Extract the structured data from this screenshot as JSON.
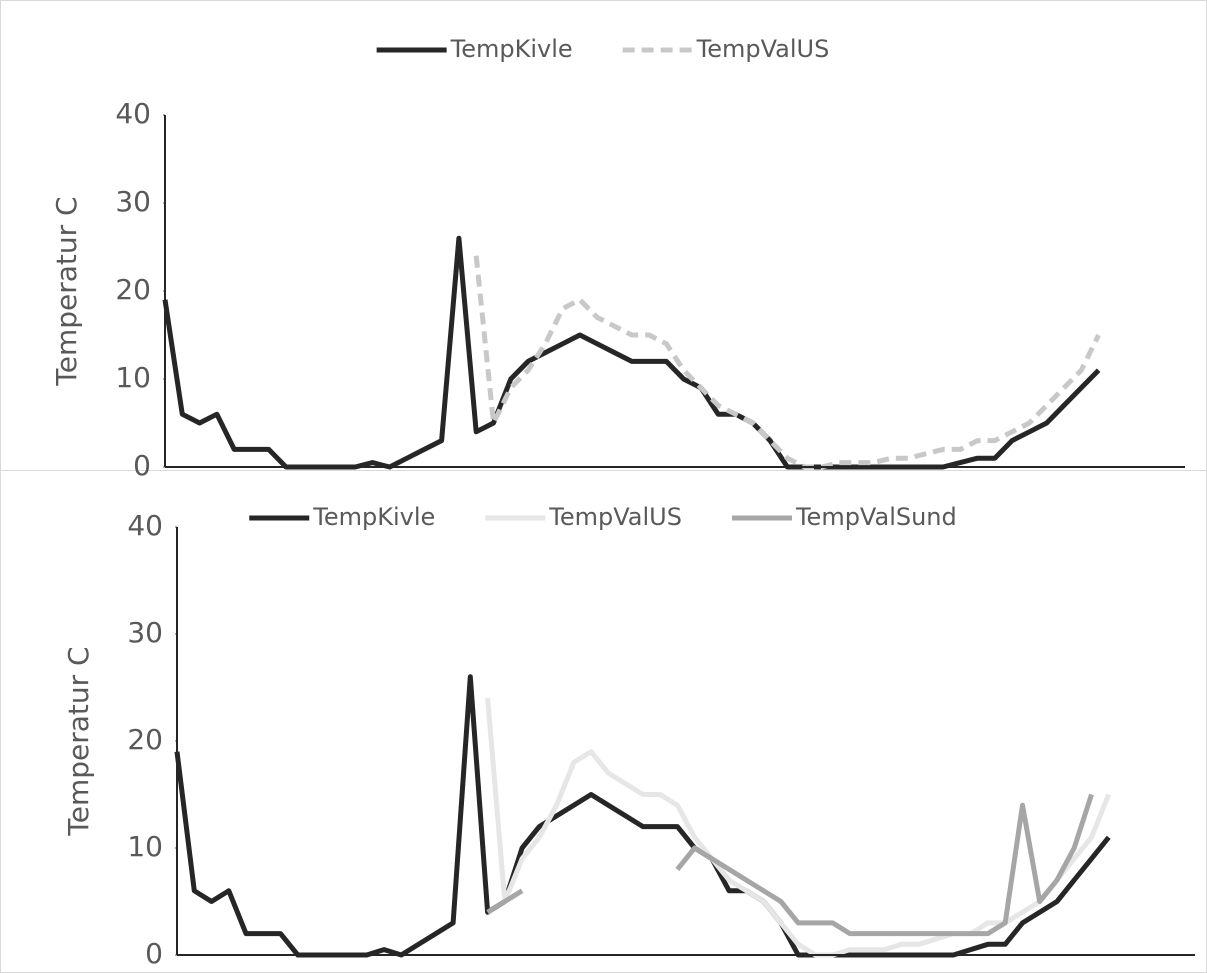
{
  "chart_data": [
    {
      "type": "line",
      "ylabel": "Temperatur C",
      "ylim": [
        0,
        40
      ],
      "yticks": [
        0,
        10,
        20,
        30,
        40
      ],
      "grid": false,
      "legend": "top",
      "categories": [
        null,
        null,
        null,
        null,
        null,
        null,
        null,
        null,
        null,
        null,
        null,
        null,
        null,
        null,
        null,
        null,
        null,
        null,
        null,
        null,
        null,
        null,
        null,
        null,
        null,
        null,
        null,
        null,
        null,
        null,
        null,
        null,
        null,
        null,
        null,
        null,
        null,
        null,
        null,
        null,
        null,
        null,
        null,
        null,
        null,
        null,
        null,
        null,
        null,
        null,
        null,
        null,
        null,
        null,
        null,
        null,
        null,
        null,
        null,
        null
      ],
      "series": [
        {
          "name": "TempKivle",
          "color": "#262626",
          "dash": false,
          "values": [
            19,
            6,
            5,
            6,
            2,
            2,
            2,
            0,
            0,
            0,
            0,
            0,
            0.5,
            0,
            1,
            2,
            3,
            26,
            4,
            5,
            10,
            12,
            13,
            14,
            15,
            14,
            13,
            12,
            12,
            12,
            10,
            9,
            6,
            6,
            5,
            3,
            0,
            0,
            0,
            0,
            0,
            0,
            0,
            0,
            0,
            0,
            0.5,
            1,
            1,
            3,
            4,
            5,
            7,
            9,
            11,
            null,
            null,
            null,
            null,
            null
          ]
        },
        {
          "name": "TempValUS",
          "color": "#c8c8c8",
          "dash": true,
          "values": [
            null,
            null,
            null,
            null,
            null,
            null,
            null,
            null,
            null,
            null,
            null,
            null,
            null,
            null,
            null,
            null,
            null,
            null,
            24,
            5,
            9,
            11,
            14,
            18,
            19,
            17,
            16,
            15,
            15,
            14,
            11,
            9,
            7,
            6,
            5,
            3,
            1,
            0,
            0,
            0.5,
            0.5,
            0.5,
            1,
            1,
            1.5,
            2,
            2,
            3,
            3,
            4,
            5,
            7,
            9,
            11,
            15,
            null,
            null,
            null,
            null,
            null
          ]
        }
      ]
    },
    {
      "type": "line",
      "ylabel": "Temperatur C",
      "ylim": [
        0,
        40
      ],
      "yticks": [
        0,
        10,
        20,
        30,
        40
      ],
      "grid": false,
      "legend": "top",
      "categories": [
        null,
        null,
        null,
        null,
        null,
        null,
        null,
        null,
        null,
        null,
        null,
        null,
        null,
        null,
        null,
        null,
        null,
        null,
        null,
        null,
        null,
        null,
        null,
        null,
        null,
        null,
        null,
        null,
        null,
        null,
        null,
        null,
        null,
        null,
        null,
        null,
        null,
        null,
        null,
        null,
        null,
        null,
        null,
        null,
        null,
        null,
        null,
        null,
        null,
        null,
        null,
        null,
        null,
        null,
        null,
        null,
        null,
        null,
        null,
        null
      ],
      "series": [
        {
          "name": "TempKivle",
          "color": "#262626",
          "dash": false,
          "values": [
            19,
            6,
            5,
            6,
            2,
            2,
            2,
            0,
            0,
            0,
            0,
            0,
            0.5,
            0,
            1,
            2,
            3,
            26,
            4,
            5,
            10,
            12,
            13,
            14,
            15,
            14,
            13,
            12,
            12,
            12,
            10,
            9,
            6,
            6,
            5,
            3,
            0,
            0,
            0,
            0,
            0,
            0,
            0,
            0,
            0,
            0,
            0.5,
            1,
            1,
            3,
            4,
            5,
            7,
            9,
            11,
            null,
            null,
            null,
            null,
            null
          ]
        },
        {
          "name": "TempValUS",
          "color": "#e6e6e6",
          "dash": false,
          "values": [
            null,
            null,
            null,
            null,
            null,
            null,
            null,
            null,
            null,
            null,
            null,
            null,
            null,
            null,
            null,
            null,
            null,
            null,
            24,
            5,
            9,
            11,
            14,
            18,
            19,
            17,
            16,
            15,
            15,
            14,
            11,
            9,
            7,
            6,
            5,
            3,
            1,
            0,
            0,
            0.5,
            0.5,
            0.5,
            1,
            1,
            1.5,
            2,
            2,
            3,
            3,
            4,
            5,
            7,
            9,
            11,
            15,
            null,
            null,
            null,
            null,
            null
          ]
        },
        {
          "name": "TempValSund",
          "color": "#a6a6a6",
          "dash": false,
          "values": [
            null,
            null,
            null,
            null,
            null,
            null,
            null,
            null,
            null,
            null,
            null,
            null,
            null,
            null,
            null,
            null,
            null,
            null,
            4,
            5,
            6,
            null,
            null,
            null,
            null,
            null,
            null,
            null,
            null,
            8,
            10,
            9,
            8,
            7,
            6,
            5,
            3,
            3,
            3,
            2,
            2,
            2,
            2,
            2,
            2,
            2,
            2,
            2,
            3,
            14,
            5,
            7,
            10,
            15,
            null,
            null,
            null,
            null,
            null,
            null
          ]
        }
      ]
    }
  ]
}
